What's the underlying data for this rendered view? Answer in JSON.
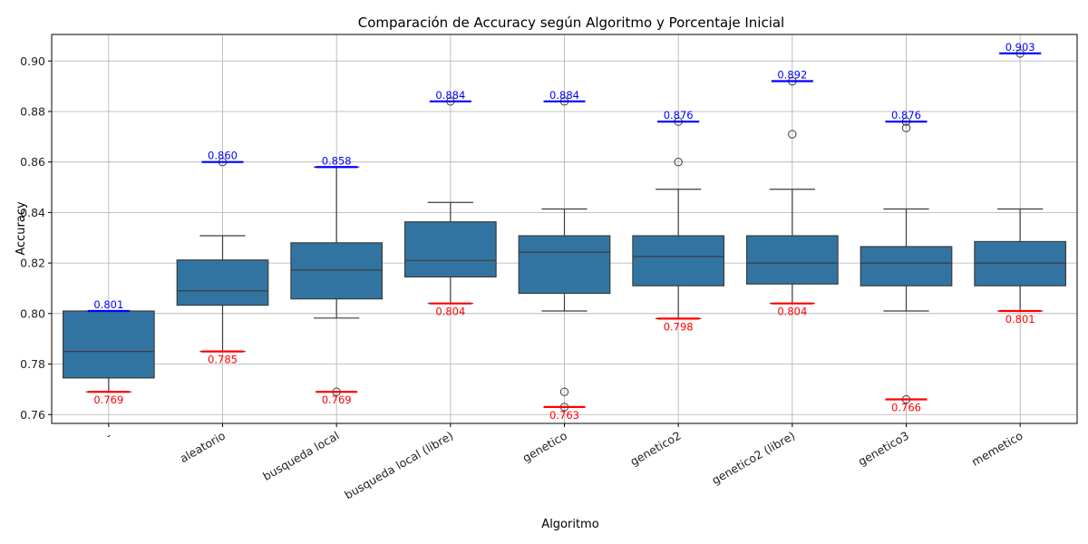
{
  "chart_data": {
    "type": "box",
    "title": "Comparación de Accuracy según Algoritmo y Porcentaje Inicial",
    "xlabel": "Algoritmo",
    "ylabel": "Accuracy",
    "ylim": [
      0.7565,
      0.9105
    ],
    "yticks": [
      0.76,
      0.78,
      0.8,
      0.82,
      0.84,
      0.86,
      0.88,
      0.9
    ],
    "ytick_labels": [
      "0.76",
      "0.78",
      "0.80",
      "0.82",
      "0.84",
      "0.86",
      "0.88",
      "0.90"
    ],
    "grid": true,
    "box_color": "#3274a1",
    "max_color": "#0000ff",
    "min_color": "#ff0000",
    "categories": [
      "-",
      "aleatorio",
      "busqueda local",
      "busqueda local (libre)",
      "genetico",
      "genetico2",
      "genetico2 (libre)",
      "genetico3",
      "memetico"
    ],
    "boxes": [
      {
        "whislo": 0.769,
        "q1": 0.7745,
        "med": 0.785,
        "q3": 0.801,
        "whishi": 0.801,
        "fliers": []
      },
      {
        "whislo": 0.785,
        "q1": 0.8033,
        "med": 0.809,
        "q3": 0.8212,
        "whishi": 0.8308,
        "fliers": [
          0.86
        ]
      },
      {
        "whislo": 0.7982,
        "q1": 0.8058,
        "med": 0.8172,
        "q3": 0.828,
        "whishi": 0.858,
        "fliers": [
          0.769
        ]
      },
      {
        "whislo": 0.804,
        "q1": 0.8145,
        "med": 0.821,
        "q3": 0.8363,
        "whishi": 0.844,
        "fliers": [
          0.884
        ]
      },
      {
        "whislo": 0.801,
        "q1": 0.808,
        "med": 0.8243,
        "q3": 0.8308,
        "whishi": 0.8414,
        "fliers": [
          0.769,
          0.763,
          0.884
        ]
      },
      {
        "whislo": 0.798,
        "q1": 0.811,
        "med": 0.8226,
        "q3": 0.8308,
        "whishi": 0.8492,
        "fliers": [
          0.86,
          0.876
        ]
      },
      {
        "whislo": 0.804,
        "q1": 0.8117,
        "med": 0.82,
        "q3": 0.8308,
        "whishi": 0.8492,
        "fliers": [
          0.871,
          0.892
        ]
      },
      {
        "whislo": 0.801,
        "q1": 0.811,
        "med": 0.82,
        "q3": 0.8265,
        "whishi": 0.8414,
        "fliers": [
          0.766,
          0.8735,
          0.876
        ]
      },
      {
        "whislo": 0.801,
        "q1": 0.811,
        "med": 0.82,
        "q3": 0.8285,
        "whishi": 0.8414,
        "fliers": [
          0.903
        ]
      }
    ],
    "max_lines": [
      0.801,
      0.86,
      0.858,
      0.884,
      0.884,
      0.876,
      0.892,
      0.876,
      0.903
    ],
    "min_lines": [
      0.769,
      0.785,
      0.769,
      0.804,
      0.763,
      0.798,
      0.804,
      0.766,
      0.801
    ],
    "max_labels": [
      "0.801",
      "0.860",
      "0.858",
      "0.884",
      "0.884",
      "0.876",
      "0.892",
      "0.876",
      "0.903"
    ],
    "min_labels": [
      "0.769",
      "0.785",
      "0.769",
      "0.804",
      "0.763",
      "0.798",
      "0.804",
      "0.766",
      "0.801"
    ]
  }
}
